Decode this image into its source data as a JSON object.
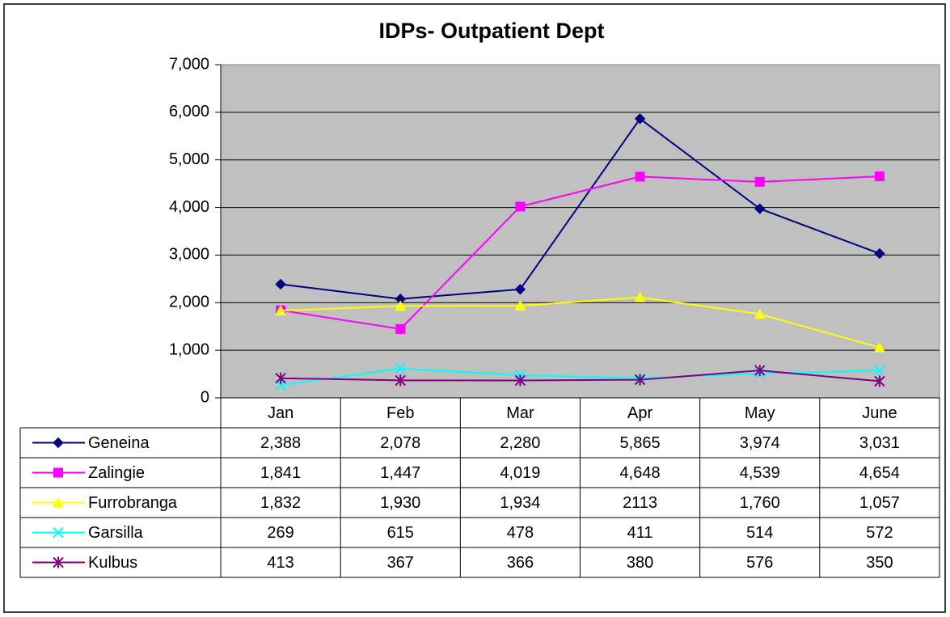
{
  "chart_data": {
    "type": "line",
    "title": "IDPs- Outpatient Dept",
    "categories": [
      "Jan",
      "Feb",
      "Mar",
      "Apr",
      "May",
      "June"
    ],
    "ylim": [
      0,
      7000
    ],
    "yticks": [
      0,
      {
        "value": 1000,
        "label": "1,000"
      },
      {
        "value": 2000,
        "label": "2,000"
      },
      {
        "value": 3000,
        "label": "3,000"
      },
      {
        "value": 4000,
        "label": "4,000"
      },
      {
        "value": 5000,
        "label": "5,000"
      },
      {
        "value": 6000,
        "label": "6,000"
      },
      {
        "value": 7000,
        "label": "7,000"
      }
    ],
    "grid": true,
    "plot_background": "#c0c0c0",
    "series": [
      {
        "name": "Geneina",
        "color": "#000080",
        "values": [
          2388,
          2078,
          2280,
          5865,
          3974,
          3031
        ],
        "value_labels": [
          "2,388",
          "2,078",
          "2,280",
          "5,865",
          "3,974",
          "3,031"
        ]
      },
      {
        "name": "Zalingie",
        "color": "#ff00ff",
        "values": [
          1841,
          1447,
          4019,
          4648,
          4539,
          4654
        ],
        "value_labels": [
          "1,841",
          "1,447",
          "4,019",
          "4,648",
          "4,539",
          "4,654"
        ]
      },
      {
        "name": "Furrobranga",
        "color": "#ffff00",
        "values": [
          1832,
          1930,
          1934,
          2113,
          1760,
          1057
        ],
        "value_labels": [
          "1,832",
          "1,930",
          "1,934",
          "2113",
          "1,760",
          "1,057"
        ]
      },
      {
        "name": "Garsilla",
        "color": "#00ffff",
        "values": [
          269,
          615,
          478,
          411,
          514,
          572
        ],
        "value_labels": [
          "269",
          "615",
          "478",
          "411",
          "514",
          "572"
        ]
      },
      {
        "name": "Kulbus",
        "color": "#800080",
        "values": [
          413,
          367,
          366,
          380,
          576,
          350
        ],
        "value_labels": [
          "413",
          "367",
          "366",
          "380",
          "576",
          "350"
        ]
      }
    ]
  }
}
